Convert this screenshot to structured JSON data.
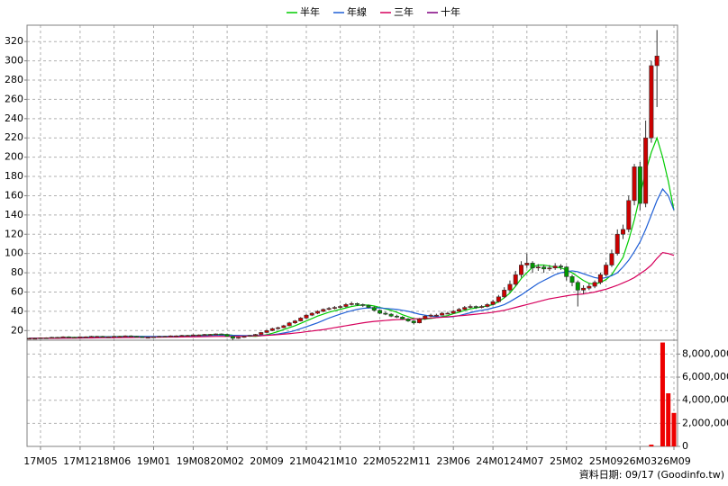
{
  "chart_data": {
    "type": "candlestick",
    "footnote": "資料日期: 09/17  (Goodinfo.tw)",
    "categories": [
      null,
      null,
      "17M05",
      null,
      null,
      null,
      null,
      null,
      null,
      "17M12",
      null,
      null,
      null,
      null,
      null,
      "18M06",
      null,
      null,
      null,
      null,
      null,
      null,
      "19M01",
      null,
      null,
      null,
      null,
      null,
      null,
      "19M08",
      null,
      null,
      null,
      null,
      null,
      "20M02",
      null,
      null,
      null,
      null,
      null,
      null,
      "20M09",
      null,
      null,
      null,
      null,
      null,
      null,
      "21M04",
      null,
      null,
      null,
      null,
      null,
      "21M10",
      null,
      null,
      null,
      null,
      null,
      null,
      "22M05",
      null,
      null,
      null,
      null,
      null,
      "22M11",
      null,
      null,
      null,
      null,
      null,
      null,
      "23M06",
      null,
      null,
      null,
      null,
      null,
      null,
      "24M01",
      null,
      null,
      null,
      null,
      null,
      "24M07",
      null,
      null,
      null,
      null,
      null,
      null,
      "25M02",
      null,
      null,
      null,
      null,
      null,
      null,
      "25M09",
      null,
      null,
      null,
      null,
      null,
      "26M03",
      null,
      null,
      null,
      null,
      null,
      "26M09"
    ],
    "ohlc": [
      [
        12,
        12.5,
        11.5,
        12
      ],
      [
        12,
        12.5,
        11.5,
        12
      ],
      [
        12,
        13,
        11.8,
        12.5
      ],
      [
        12.5,
        13,
        12,
        12.5
      ],
      [
        12.5,
        13.5,
        12.2,
        13
      ],
      [
        13,
        13.5,
        12.5,
        13
      ],
      [
        13,
        14,
        12.8,
        13.5
      ],
      [
        13.5,
        14,
        12.8,
        13
      ],
      [
        13,
        13.5,
        12.5,
        13
      ],
      [
        13,
        14,
        12.8,
        13.5
      ],
      [
        13.5,
        14,
        13,
        13.5
      ],
      [
        13.5,
        14.5,
        13.2,
        14
      ],
      [
        14,
        14.5,
        13.5,
        14
      ],
      [
        14,
        14.5,
        13.2,
        13.5
      ],
      [
        13.5,
        14,
        13,
        13.5
      ],
      [
        13.5,
        14.5,
        13.2,
        14
      ],
      [
        14,
        14.5,
        13.5,
        14
      ],
      [
        14,
        15,
        13.8,
        14.5
      ],
      [
        14.5,
        15,
        13.5,
        14
      ],
      [
        14,
        14.5,
        13,
        13.5
      ],
      [
        13.5,
        14,
        12.5,
        13
      ],
      [
        13,
        13.5,
        12.5,
        13
      ],
      [
        13,
        14,
        12.8,
        13.5
      ],
      [
        13.5,
        14.5,
        13.2,
        14
      ],
      [
        14,
        14.5,
        13.5,
        14
      ],
      [
        14,
        15,
        13.8,
        14.5
      ],
      [
        14.5,
        15,
        14,
        14.5
      ],
      [
        14.5,
        15.5,
        14.2,
        15
      ],
      [
        15,
        15.5,
        14.5,
        15
      ],
      [
        15,
        16,
        14.8,
        15.5
      ],
      [
        15.5,
        16,
        15,
        15.5
      ],
      [
        15.5,
        16.5,
        15.2,
        16
      ],
      [
        16,
        16.5,
        15.5,
        16
      ],
      [
        16,
        17,
        15.8,
        16.5
      ],
      [
        16.5,
        17,
        15.5,
        16
      ],
      [
        16,
        16.5,
        13.5,
        14
      ],
      [
        14,
        14.5,
        10,
        12
      ],
      [
        12,
        13.5,
        11.5,
        13
      ],
      [
        13,
        14.5,
        12.5,
        14
      ],
      [
        14,
        15.5,
        13.5,
        15
      ],
      [
        15,
        16.5,
        14.5,
        16
      ],
      [
        16,
        18.5,
        15.5,
        18
      ],
      [
        18,
        21,
        17.5,
        20
      ],
      [
        20,
        23,
        19.5,
        22
      ],
      [
        22,
        24,
        21,
        23
      ],
      [
        23,
        26,
        22.5,
        25
      ],
      [
        25,
        29,
        24.5,
        28
      ],
      [
        28,
        31,
        27,
        30
      ],
      [
        30,
        34,
        29.5,
        33
      ],
      [
        33,
        37,
        32,
        36
      ],
      [
        36,
        39,
        35,
        38
      ],
      [
        38,
        41,
        37,
        40
      ],
      [
        40,
        43,
        39,
        42
      ],
      [
        42,
        44.5,
        41,
        43
      ],
      [
        43,
        45.5,
        42,
        44
      ],
      [
        44,
        46.5,
        43,
        45
      ],
      [
        45,
        48.5,
        44,
        47
      ],
      [
        47,
        50,
        46,
        48
      ],
      [
        48,
        49,
        45.5,
        47
      ],
      [
        47,
        48,
        44.5,
        46
      ],
      [
        46,
        47,
        43,
        44
      ],
      [
        44,
        45,
        40,
        41
      ],
      [
        41,
        42,
        37,
        38
      ],
      [
        38,
        39.5,
        36,
        37
      ],
      [
        37,
        38,
        34,
        35
      ],
      [
        35,
        36.5,
        33,
        34
      ],
      [
        34,
        35,
        31,
        32
      ],
      [
        32,
        33,
        29,
        30
      ],
      [
        30,
        31,
        26.5,
        28
      ],
      [
        28,
        33,
        27.5,
        32
      ],
      [
        32,
        36,
        31,
        35
      ],
      [
        35,
        37.5,
        34,
        36
      ],
      [
        36,
        37.5,
        34.5,
        36
      ],
      [
        36,
        39.5,
        35.5,
        38
      ],
      [
        38,
        39.5,
        37,
        38
      ],
      [
        38,
        41.5,
        37.5,
        40
      ],
      [
        40,
        43.5,
        39.5,
        42
      ],
      [
        42,
        45.5,
        41,
        44
      ],
      [
        44,
        47,
        43,
        45
      ],
      [
        45,
        46,
        42.5,
        44
      ],
      [
        44,
        46.5,
        43,
        45
      ],
      [
        45,
        48.5,
        44,
        47
      ],
      [
        47,
        52,
        46,
        50
      ],
      [
        50,
        57,
        49,
        55
      ],
      [
        55,
        65,
        54,
        62
      ],
      [
        62,
        72,
        60,
        68
      ],
      [
        68,
        82,
        66,
        78
      ],
      [
        78,
        92,
        75,
        88
      ],
      [
        88,
        100,
        85,
        90
      ],
      [
        90,
        92,
        80,
        85
      ],
      [
        85,
        89,
        82,
        86
      ],
      [
        86,
        88,
        80,
        84
      ],
      [
        84,
        88,
        82,
        85
      ],
      [
        85,
        90,
        83,
        87
      ],
      [
        87,
        89,
        83,
        86
      ],
      [
        86,
        87,
        72,
        76
      ],
      [
        76,
        78,
        66,
        70
      ],
      [
        70,
        72,
        45,
        62
      ],
      [
        62,
        67,
        58,
        64
      ],
      [
        64,
        69,
        62,
        66
      ],
      [
        66,
        72,
        64,
        70
      ],
      [
        70,
        80,
        68,
        78
      ],
      [
        78,
        91,
        76,
        88
      ],
      [
        88,
        104,
        86,
        100
      ],
      [
        100,
        125,
        98,
        120
      ],
      [
        120,
        130,
        115,
        125
      ],
      [
        125,
        160,
        122,
        155
      ],
      [
        155,
        193,
        150,
        190
      ],
      [
        190,
        195,
        145,
        152
      ],
      [
        152,
        238,
        148,
        220
      ],
      [
        220,
        300,
        215,
        295
      ],
      [
        295,
        332,
        252,
        305
      ],
      null,
      null,
      null
    ],
    "up_color": "#cc0000",
    "down_color": "#009900",
    "series": [
      {
        "name": "半年",
        "color": "#00cc00",
        "values": [
          12,
          12,
          12,
          12.2,
          12.4,
          12.6,
          12.8,
          13,
          13,
          13.1,
          13.2,
          13.4,
          13.6,
          13.7,
          13.7,
          13.8,
          13.9,
          14,
          14.1,
          14,
          13.9,
          13.8,
          13.7,
          13.7,
          13.8,
          13.9,
          14.1,
          14.4,
          14.6,
          14.9,
          15.1,
          15.4,
          15.7,
          15.9,
          16,
          15.8,
          15.2,
          14.8,
          14.5,
          14.3,
          14,
          14.7,
          15.8,
          17.2,
          19,
          21,
          23,
          25,
          27.5,
          30,
          32.5,
          35,
          37,
          39,
          40.5,
          42,
          43.5,
          45,
          46,
          46.5,
          46.5,
          45.5,
          44,
          42.5,
          41,
          39,
          36.5,
          34.5,
          32.5,
          31.5,
          32,
          32.5,
          33.5,
          34.5,
          35.5,
          37.5,
          39,
          41,
          42.5,
          43.5,
          44.5,
          45.5,
          47,
          50,
          54,
          59,
          66,
          74,
          80,
          86,
          88,
          88,
          87,
          86,
          85,
          83,
          80,
          76,
          72,
          69,
          68,
          70,
          73,
          78,
          87,
          96,
          114,
          135,
          160,
          185,
          205,
          220,
          200,
          175,
          145
        ]
      },
      {
        "name": "年線",
        "color": "#1f5fd6",
        "values": [
          12,
          12,
          12,
          12,
          12.1,
          12.2,
          12.3,
          12.5,
          12.6,
          12.8,
          12.9,
          13,
          13.2,
          13.3,
          13.5,
          13.6,
          13.7,
          13.8,
          13.9,
          13.9,
          13.9,
          13.9,
          13.9,
          13.9,
          13.9,
          14,
          14,
          14.1,
          14.2,
          14.3,
          14.5,
          14.7,
          14.9,
          15.1,
          15.2,
          15.2,
          15,
          14.9,
          14.8,
          14.8,
          14.8,
          15,
          15.3,
          15.8,
          16.5,
          17.5,
          18.5,
          20,
          22,
          24,
          26,
          28,
          30.5,
          33,
          35,
          37,
          39,
          40.5,
          42,
          43,
          43.5,
          43.5,
          43.5,
          43,
          42.5,
          42,
          41,
          40,
          38.5,
          37,
          36,
          35,
          34.5,
          34,
          34,
          34.5,
          35.5,
          37,
          38.5,
          40,
          41,
          42,
          43.5,
          45,
          47,
          50,
          53.5,
          57,
          61,
          65,
          69,
          72,
          75,
          78,
          80,
          81,
          82,
          81,
          79,
          77,
          75,
          74,
          75,
          77,
          80,
          86,
          93,
          102,
          112,
          125,
          140,
          155,
          167,
          160,
          145
        ]
      },
      {
        "name": "三年",
        "color": "#d6005c",
        "values": [
          12,
          12,
          12,
          12,
          12,
          12,
          12.1,
          12.1,
          12.2,
          12.2,
          12.3,
          12.3,
          12.4,
          12.5,
          12.5,
          12.6,
          12.7,
          12.8,
          12.8,
          12.9,
          13,
          13,
          13.1,
          13.1,
          13.2,
          13.3,
          13.3,
          13.4,
          13.5,
          13.5,
          13.6,
          13.7,
          13.8,
          13.9,
          14,
          14,
          14,
          14.1,
          14.2,
          14.3,
          14.5,
          14.7,
          15,
          15.4,
          15.8,
          16.3,
          16.8,
          17.4,
          18,
          18.8,
          19.5,
          20.3,
          21,
          22,
          23,
          24,
          25,
          26,
          27,
          28,
          28.8,
          29.5,
          30,
          30.5,
          31,
          31.3,
          31.6,
          31.8,
          32,
          32.3,
          32.6,
          33,
          33.4,
          33.8,
          34.3,
          34.8,
          35.3,
          35.8,
          36.4,
          37,
          37.6,
          38.2,
          39,
          40,
          41,
          42.5,
          44,
          45.5,
          47,
          48.5,
          50,
          51.5,
          53,
          54,
          55,
          56,
          57,
          57.5,
          58,
          59,
          60,
          61.5,
          63,
          65,
          67,
          69.5,
          72,
          75,
          79,
          83,
          88,
          95,
          101,
          100,
          98
        ]
      },
      {
        "name": "十年",
        "color": "#800080",
        "values": [
          null,
          null,
          null,
          null,
          null,
          null,
          null,
          null,
          null,
          null,
          null,
          null,
          null,
          null,
          null,
          null,
          null,
          null,
          null,
          null,
          null,
          null,
          null,
          null,
          null,
          null,
          null,
          null,
          null,
          null,
          null,
          null,
          null,
          null,
          null,
          null,
          null,
          null,
          null,
          null,
          null,
          null,
          null,
          null,
          null,
          null,
          null,
          null,
          null,
          null,
          null,
          null,
          null,
          null,
          null,
          null,
          null,
          null,
          null,
          null,
          null,
          null,
          null,
          null,
          null,
          null,
          null,
          null,
          null,
          null,
          null,
          null,
          null,
          null,
          null,
          null,
          null,
          null,
          null,
          null,
          null,
          null,
          null,
          null,
          null,
          null,
          null,
          null,
          null,
          null,
          null,
          null,
          null,
          null,
          null,
          null,
          null,
          null,
          null,
          null,
          null,
          null,
          null,
          null,
          null,
          null,
          null,
          null,
          null,
          null,
          null,
          null,
          null,
          null,
          null
        ]
      }
    ],
    "ylim": [
      10,
      337
    ],
    "yticks": [
      20,
      40,
      60,
      80,
      100,
      120,
      140,
      160,
      180,
      200,
      220,
      240,
      260,
      280,
      300,
      320
    ],
    "grid": true,
    "volume": {
      "color": "#ee0000",
      "ylim": [
        0,
        9200000
      ],
      "yticks": [
        0,
        {
          "value": 2000000,
          "label": "2,000,000"
        },
        {
          "value": 4000000,
          "label": "4,000,000"
        },
        {
          "value": 6000000,
          "label": "6,000,000"
        },
        {
          "value": 8000000,
          "label": "8,000,000"
        }
      ],
      "values": [
        0,
        0,
        0,
        0,
        0,
        0,
        0,
        0,
        0,
        0,
        0,
        0,
        0,
        0,
        0,
        0,
        0,
        0,
        0,
        0,
        0,
        0,
        0,
        0,
        0,
        0,
        0,
        0,
        0,
        0,
        0,
        0,
        0,
        0,
        0,
        0,
        0,
        0,
        0,
        0,
        0,
        0,
        0,
        0,
        0,
        0,
        0,
        0,
        0,
        0,
        0,
        0,
        0,
        0,
        0,
        0,
        0,
        0,
        0,
        0,
        0,
        0,
        0,
        0,
        0,
        0,
        0,
        0,
        0,
        0,
        0,
        0,
        0,
        0,
        0,
        0,
        0,
        0,
        0,
        0,
        0,
        0,
        0,
        0,
        0,
        0,
        0,
        0,
        0,
        0,
        0,
        0,
        0,
        0,
        0,
        0,
        0,
        0,
        0,
        0,
        0,
        0,
        0,
        0,
        0,
        0,
        0,
        0,
        0,
        0,
        150000,
        0,
        9000000,
        4600000,
        2900000
      ]
    }
  }
}
